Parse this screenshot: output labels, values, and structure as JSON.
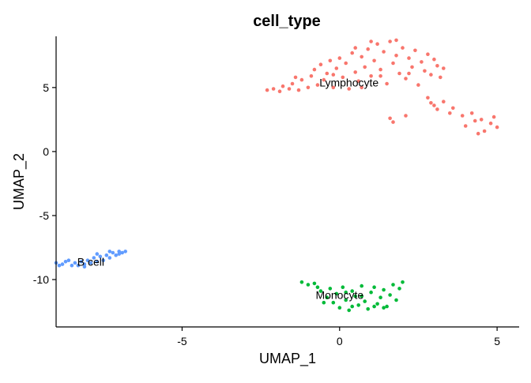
{
  "chart_data": {
    "type": "scatter",
    "title": "cell_type",
    "xlabel": "UMAP_1",
    "ylabel": "UMAP_2",
    "xlim": [
      -9.0,
      5.7
    ],
    "ylim": [
      -13.7,
      9.0
    ],
    "x_ticks": [
      -5,
      0,
      5
    ],
    "x_tick_labels": [
      "-5",
      "0",
      "5"
    ],
    "y_ticks": [
      5,
      0,
      -5,
      -10
    ],
    "y_tick_labels": [
      "5",
      "0",
      "-5",
      "-10"
    ],
    "grid": false,
    "legend": "none",
    "series": [
      {
        "name": "Lymphocyte",
        "color": "#F8766D",
        "label_pos": [
          0.3,
          5.4
        ],
        "points": [
          [
            -2.3,
            4.8
          ],
          [
            -2.1,
            4.9
          ],
          [
            -1.9,
            4.7
          ],
          [
            -1.8,
            5.1
          ],
          [
            -1.6,
            4.9
          ],
          [
            -1.5,
            5.3
          ],
          [
            -1.3,
            4.8
          ],
          [
            -1.2,
            5.6
          ],
          [
            -1.0,
            5.0
          ],
          [
            -0.9,
            5.9
          ],
          [
            -0.8,
            6.4
          ],
          [
            -0.7,
            5.2
          ],
          [
            -0.6,
            6.8
          ],
          [
            -0.5,
            5.6
          ],
          [
            -0.4,
            6.1
          ],
          [
            -0.3,
            7.1
          ],
          [
            -0.2,
            5.0
          ],
          [
            -0.1,
            6.5
          ],
          [
            0.0,
            7.3
          ],
          [
            0.1,
            5.8
          ],
          [
            0.2,
            6.9
          ],
          [
            0.3,
            4.9
          ],
          [
            0.4,
            7.7
          ],
          [
            0.5,
            6.2
          ],
          [
            0.6,
            5.5
          ],
          [
            0.7,
            7.4
          ],
          [
            0.8,
            6.6
          ],
          [
            0.9,
            8.0
          ],
          [
            1.0,
            5.9
          ],
          [
            1.1,
            7.1
          ],
          [
            1.2,
            8.4
          ],
          [
            1.3,
            6.4
          ],
          [
            1.4,
            7.8
          ],
          [
            1.5,
            5.3
          ],
          [
            1.6,
            8.6
          ],
          [
            1.7,
            6.9
          ],
          [
            1.8,
            7.5
          ],
          [
            1.9,
            6.1
          ],
          [
            2.0,
            8.1
          ],
          [
            2.1,
            5.7
          ],
          [
            2.2,
            7.3
          ],
          [
            2.3,
            6.6
          ],
          [
            2.4,
            7.9
          ],
          [
            2.5,
            5.2
          ],
          [
            2.6,
            7.0
          ],
          [
            2.7,
            6.3
          ],
          [
            2.8,
            7.6
          ],
          [
            2.9,
            6.0
          ],
          [
            3.0,
            7.2
          ],
          [
            3.1,
            6.7
          ],
          [
            3.2,
            5.8
          ],
          [
            3.3,
            6.5
          ],
          [
            -1.4,
            5.8
          ],
          [
            -0.2,
            6.0
          ],
          [
            0.7,
            5.0
          ],
          [
            1.3,
            5.9
          ],
          [
            2.2,
            6.1
          ],
          [
            0.5,
            8.1
          ],
          [
            1.0,
            8.6
          ],
          [
            1.8,
            8.7
          ],
          [
            2.8,
            4.2
          ],
          [
            3.0,
            3.6
          ],
          [
            3.3,
            3.9
          ],
          [
            3.6,
            3.4
          ],
          [
            3.9,
            2.8
          ],
          [
            4.2,
            3.0
          ],
          [
            4.5,
            2.5
          ],
          [
            4.8,
            2.2
          ],
          [
            5.0,
            1.9
          ],
          [
            4.6,
            1.6
          ],
          [
            4.3,
            2.4
          ],
          [
            4.0,
            2.0
          ],
          [
            3.5,
            3.0
          ],
          [
            3.1,
            3.3
          ],
          [
            2.9,
            3.8
          ],
          [
            1.7,
            2.3
          ],
          [
            1.6,
            2.6
          ],
          [
            2.1,
            2.8
          ],
          [
            4.9,
            2.7
          ],
          [
            4.4,
            1.4
          ]
        ]
      },
      {
        "name": "Monocyte",
        "color": "#00BA38",
        "label_pos": [
          0.0,
          -11.2
        ],
        "points": [
          [
            -1.2,
            -10.2
          ],
          [
            -1.0,
            -10.4
          ],
          [
            -0.8,
            -10.3
          ],
          [
            -0.6,
            -10.9
          ],
          [
            -0.4,
            -11.4
          ],
          [
            -0.3,
            -10.7
          ],
          [
            -0.2,
            -11.8
          ],
          [
            -0.1,
            -11.1
          ],
          [
            0.0,
            -12.2
          ],
          [
            0.1,
            -10.6
          ],
          [
            0.2,
            -11.6
          ],
          [
            0.3,
            -12.4
          ],
          [
            0.4,
            -10.9
          ],
          [
            0.5,
            -11.3
          ],
          [
            0.6,
            -12.0
          ],
          [
            0.7,
            -10.5
          ],
          [
            0.8,
            -11.7
          ],
          [
            0.9,
            -12.3
          ],
          [
            1.0,
            -11.0
          ],
          [
            1.1,
            -10.6
          ],
          [
            1.2,
            -11.9
          ],
          [
            1.3,
            -11.4
          ],
          [
            1.4,
            -10.8
          ],
          [
            1.5,
            -12.1
          ],
          [
            1.6,
            -11.2
          ],
          [
            1.7,
            -10.4
          ],
          [
            1.8,
            -11.6
          ],
          [
            1.9,
            -10.7
          ],
          [
            2.0,
            -10.2
          ],
          [
            1.4,
            -12.2
          ],
          [
            0.4,
            -12.1
          ],
          [
            -0.5,
            -11.8
          ],
          [
            0.7,
            -11.3
          ],
          [
            1.1,
            -12.1
          ],
          [
            0.2,
            -11.0
          ],
          [
            -0.7,
            -10.6
          ]
        ]
      },
      {
        "name": "B cell",
        "color": "#619CFF",
        "label_pos": [
          -7.9,
          -8.6
        ],
        "points": [
          [
            -9.0,
            -8.7
          ],
          [
            -8.8,
            -8.8
          ],
          [
            -8.7,
            -8.6
          ],
          [
            -8.5,
            -8.9
          ],
          [
            -8.4,
            -8.7
          ],
          [
            -8.3,
            -8.9
          ],
          [
            -8.2,
            -8.6
          ],
          [
            -8.1,
            -8.8
          ],
          [
            -8.0,
            -8.5
          ],
          [
            -7.9,
            -8.7
          ],
          [
            -7.8,
            -8.3
          ],
          [
            -7.7,
            -8.6
          ],
          [
            -7.6,
            -8.2
          ],
          [
            -7.5,
            -8.5
          ],
          [
            -7.4,
            -8.1
          ],
          [
            -7.3,
            -8.3
          ],
          [
            -7.2,
            -7.9
          ],
          [
            -7.1,
            -8.1
          ],
          [
            -7.0,
            -7.8
          ],
          [
            -6.9,
            -7.9
          ],
          [
            -6.8,
            -7.8
          ],
          [
            -8.6,
            -8.5
          ],
          [
            -7.7,
            -8.0
          ],
          [
            -8.9,
            -8.9
          ],
          [
            -7.3,
            -7.8
          ],
          [
            -8.1,
            -9.0
          ],
          [
            -7.0,
            -8.0
          ]
        ]
      }
    ]
  }
}
